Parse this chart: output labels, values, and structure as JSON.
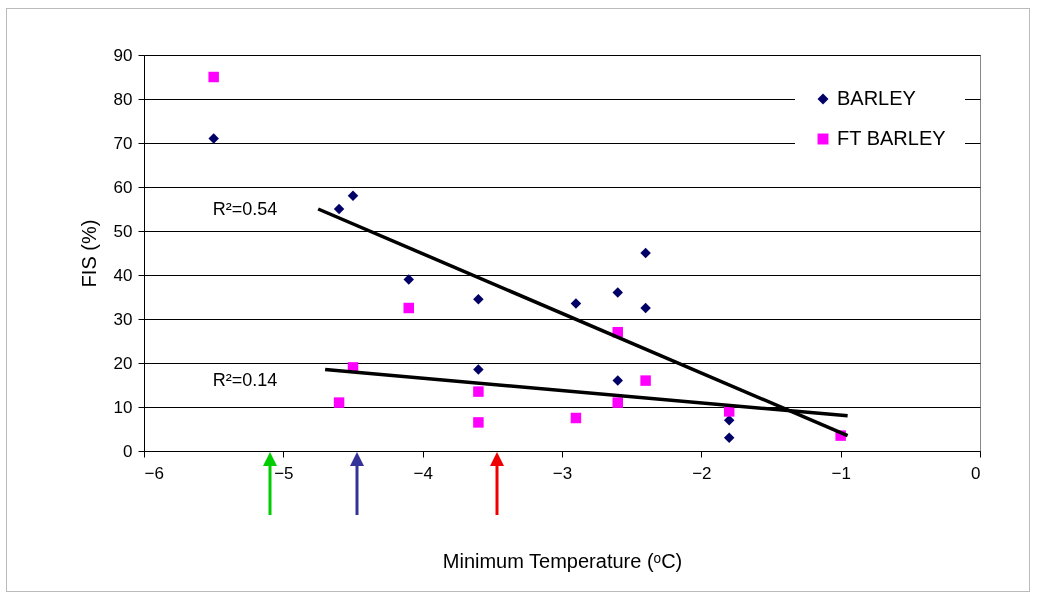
{
  "chart_data": {
    "type": "scatter",
    "xlabel": "Minimum Temperature (ᵒC)",
    "ylabel": "FIS (%)",
    "xlim": [
      -6,
      0
    ],
    "xticks": [
      -6,
      -5,
      -4,
      -3,
      -2,
      -1,
      0
    ],
    "ylim": [
      0,
      90
    ],
    "yticks": [
      0,
      10,
      20,
      30,
      40,
      50,
      60,
      70,
      80,
      90
    ],
    "grid": "y",
    "legend": "top right",
    "series": [
      {
        "name": "BARLEY",
        "color": "#000066",
        "marker": "diamond",
        "x": [
          -5.5,
          -4.6,
          -4.5,
          -4.1,
          -3.6,
          -3.6,
          -2.9,
          -2.6,
          -2.6,
          -2.4,
          -2.4,
          -1.8,
          -1.8
        ],
        "values": [
          71,
          55,
          58,
          39,
          34.5,
          18.5,
          33.5,
          36,
          16,
          45,
          32.5,
          7,
          3
        ]
      },
      {
        "name": "FT BARLEY",
        "color": "#ff00ff",
        "marker": "square",
        "x": [
          -5.5,
          -4.6,
          -4.5,
          -4.1,
          -3.6,
          -3.6,
          -2.9,
          -2.6,
          -2.6,
          -2.4,
          -1.8,
          -1
        ],
        "values": [
          85,
          11,
          19,
          32.5,
          13.5,
          6.5,
          7.5,
          27,
          11,
          16,
          9,
          3.5
        ]
      },
      {
        "type": "line",
        "color": "#000000",
        "x": [
          -4.75,
          -0.95
        ],
        "values": [
          55,
          3.5
        ]
      },
      {
        "type": "line",
        "color": "#000000",
        "x": [
          -4.7,
          -0.95
        ],
        "values": [
          18.5,
          8
        ]
      }
    ],
    "annotations": [
      "R²=0.54",
      "R²=0.14"
    ]
  }
}
